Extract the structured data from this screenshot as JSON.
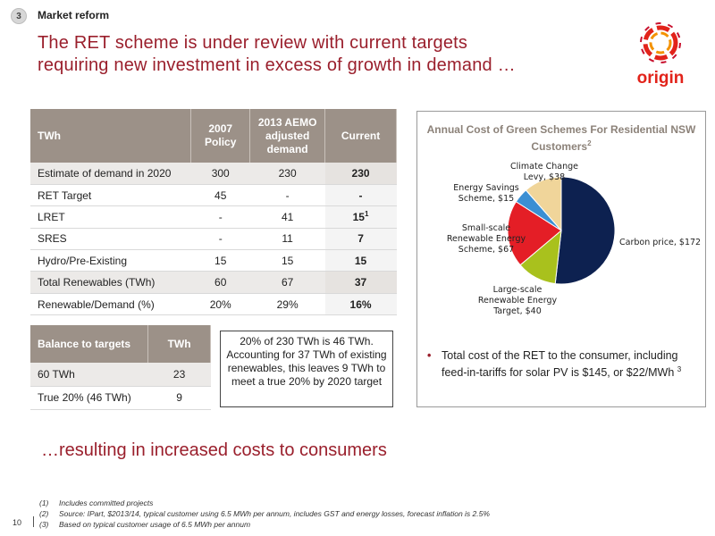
{
  "section": {
    "number": "3",
    "label": "Market reform"
  },
  "headline": {
    "line1": "The RET scheme is under review with current targets",
    "line2": "requiring new investment in excess of growth in demand …"
  },
  "logo": {
    "text": "origin"
  },
  "main_table": {
    "headers": [
      "TWh",
      "2007 Policy",
      "2013 AEMO adjusted demand",
      "Current"
    ],
    "rows": [
      {
        "label": "Estimate of demand in 2020",
        "policy": "300",
        "aemo": "230",
        "current": "230",
        "current_sup": ""
      },
      {
        "label": "RET Target",
        "policy": "45",
        "aemo": "-",
        "current": "-",
        "current_sup": ""
      },
      {
        "label": "LRET",
        "policy": "-",
        "aemo": "41",
        "current": "15",
        "current_sup": "1"
      },
      {
        "label": "SRES",
        "policy": "-",
        "aemo": "11",
        "current": "7",
        "current_sup": ""
      },
      {
        "label": "Hydro/Pre-Existing",
        "policy": "15",
        "aemo": "15",
        "current": "15",
        "current_sup": ""
      },
      {
        "label": "Total Renewables (TWh)",
        "policy": "60",
        "aemo": "67",
        "current": "37",
        "current_sup": ""
      },
      {
        "label": "Renewable/Demand (%)",
        "policy": "20%",
        "aemo": "29%",
        "current": "16%",
        "current_sup": ""
      }
    ]
  },
  "balance_table": {
    "headers": [
      "Balance to targets",
      "TWh"
    ],
    "rows": [
      {
        "label": "60 TWh",
        "value": "23"
      },
      {
        "label": "True 20% (46 TWh)",
        "value": "9"
      }
    ]
  },
  "callout": {
    "text": "20% of 230 TWh is 46 TWh. Accounting for 37 TWh of existing renewables, this leaves 9 TWh to meet a true 20% by 2020 target"
  },
  "chart_data": {
    "type": "pie",
    "title": "Annual Cost of Green Schemes For Residential NSW Customers",
    "title_sup": "2",
    "categories": [
      "Carbon price",
      "Large-scale Renewable Energy Target",
      "Small-scale Renewable Energy Scheme",
      "Energy Savings Scheme",
      "Climate Change Levy"
    ],
    "values": [
      172,
      40,
      67,
      15,
      38
    ],
    "labels": [
      [
        "Carbon price, $172"
      ],
      [
        "Large-scale",
        "Renewable Energy",
        "Target, $40"
      ],
      [
        "Small-scale",
        "Renewable Energy",
        "Scheme, $67"
      ],
      [
        "Energy Savings",
        "Scheme, $15"
      ],
      [
        "Climate Change",
        "Levy, $38"
      ]
    ],
    "colors": [
      "#0d2150",
      "#a9c11d",
      "#e41e26",
      "#3b8fd3",
      "#f0d59a"
    ]
  },
  "bullet": {
    "text": "Total cost of the RET to the consumer, including feed-in-tariffs for solar PV is $145, or $22/MWh",
    "sup": "3"
  },
  "subhead": "…resulting in increased costs to consumers",
  "footnotes": [
    {
      "num": "(1)",
      "text": "Includes committed projects"
    },
    {
      "num": "(2)",
      "text": "Source: IPart, $2013/14, typical customer using 6.5 MWh per annum, includes GST and energy losses, forecast inflation is 2.5%"
    },
    {
      "num": "(3)",
      "text": "Based on typical customer usage of 6.5 MWh per annum"
    }
  ],
  "page_number": "10",
  "colors": {
    "accent": "#9a1f2c",
    "table_header": "#9c9188",
    "chart_title": "#8c8279"
  }
}
